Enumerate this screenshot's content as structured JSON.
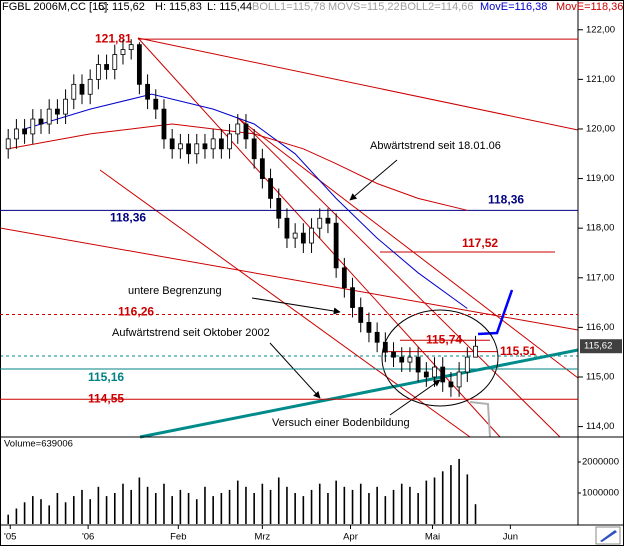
{
  "header": [
    {
      "text": "FGBL 2006M,CC [15]",
      "color": "#000000"
    },
    {
      "text": "C: 115,62",
      "color": "#000000"
    },
    {
      "text": "H: 115,83",
      "color": "#000000"
    },
    {
      "text": "L: 115,44",
      "color": "#000000"
    },
    {
      "text": "BOLL1=115,78",
      "color": "#a0a0a0"
    },
    {
      "text": "MOVS=115,22",
      "color": "#a0a0a0"
    },
    {
      "text": "BOLL2=114,66",
      "color": "#a0a0a0"
    },
    {
      "text": "MovE=116,38",
      "color": "#0000cc"
    },
    {
      "text": "MovE=118,36",
      "color": "#cc0000"
    }
  ],
  "chart_data": [
    {
      "type": "candlestick",
      "x": [
        0,
        2,
        4,
        6,
        8,
        10,
        12,
        14,
        16,
        18,
        20,
        22,
        24,
        26,
        28,
        30,
        32,
        34,
        36,
        38,
        40,
        42,
        44,
        46,
        48,
        50,
        52,
        54,
        56,
        58,
        60,
        62,
        64,
        66,
        68,
        70,
        72,
        74,
        76,
        78,
        80,
        82,
        84,
        86,
        88,
        90,
        92,
        94,
        96,
        98,
        100,
        102,
        104,
        106,
        108,
        110,
        112,
        114
      ],
      "open": [
        119.6,
        119.8,
        120.0,
        119.9,
        120.2,
        120.1,
        120.4,
        120.3,
        120.6,
        120.9,
        120.7,
        121.0,
        121.3,
        121.2,
        121.5,
        121.6,
        121.7,
        120.9,
        120.6,
        120.4,
        119.8,
        119.6,
        119.7,
        119.5,
        119.7,
        119.6,
        119.8,
        119.6,
        119.9,
        120.1,
        119.8,
        119.4,
        119.0,
        118.6,
        118.2,
        117.8,
        117.9,
        117.7,
        118.0,
        118.2,
        118.1,
        117.2,
        116.8,
        116.4,
        116.1,
        115.9,
        115.7,
        115.5,
        115.4,
        115.3,
        115.4,
        115.1,
        115.0,
        115.2,
        114.9,
        114.8,
        115.1,
        115.4
      ],
      "high": [
        120.0,
        120.2,
        120.2,
        120.4,
        120.4,
        120.6,
        120.6,
        120.8,
        121.1,
        121.1,
        121.2,
        121.5,
        121.5,
        121.7,
        121.8,
        121.81,
        121.75,
        121.1,
        120.8,
        120.6,
        120.0,
        119.9,
        119.9,
        119.9,
        119.9,
        120.0,
        120.0,
        120.1,
        120.3,
        120.3,
        120.0,
        119.6,
        119.2,
        118.8,
        118.4,
        118.1,
        118.1,
        118.2,
        118.4,
        118.4,
        118.3,
        117.4,
        117.0,
        116.6,
        116.3,
        116.1,
        115.9,
        115.7,
        115.6,
        115.6,
        115.6,
        115.3,
        115.4,
        115.4,
        115.1,
        115.3,
        115.6,
        115.83
      ],
      "low": [
        119.4,
        119.6,
        119.7,
        119.7,
        119.9,
        119.9,
        120.1,
        120.1,
        120.4,
        120.5,
        120.5,
        120.8,
        121.0,
        121.0,
        121.3,
        121.4,
        120.7,
        120.4,
        120.2,
        119.6,
        119.4,
        119.4,
        119.3,
        119.3,
        119.4,
        119.4,
        119.4,
        119.4,
        119.7,
        119.6,
        119.2,
        118.8,
        118.4,
        118.0,
        117.6,
        117.6,
        117.5,
        117.5,
        117.8,
        117.9,
        117.0,
        116.6,
        116.2,
        115.9,
        115.7,
        115.5,
        115.3,
        115.2,
        115.1,
        115.1,
        114.9,
        114.8,
        114.8,
        114.7,
        114.6,
        114.6,
        114.9,
        115.44
      ],
      "close": [
        119.8,
        120.0,
        119.9,
        120.2,
        120.1,
        120.4,
        120.3,
        120.6,
        120.9,
        120.7,
        121.0,
        121.3,
        121.2,
        121.5,
        121.6,
        121.7,
        120.9,
        120.6,
        120.4,
        119.8,
        119.6,
        119.7,
        119.5,
        119.7,
        119.6,
        119.8,
        119.6,
        119.9,
        120.1,
        119.8,
        119.4,
        119.0,
        118.6,
        118.2,
        117.8,
        117.9,
        117.7,
        118.0,
        118.2,
        118.1,
        117.2,
        116.8,
        116.4,
        116.1,
        115.9,
        115.7,
        115.5,
        115.4,
        115.3,
        115.4,
        115.1,
        115.0,
        115.2,
        114.9,
        114.8,
        115.1,
        115.4,
        115.62
      ],
      "color_up": "#ffffff",
      "color_down": "#000000",
      "xlim": [
        -2,
        139
      ],
      "xticks": [
        {
          "value": 0.5,
          "label": "'05"
        },
        {
          "value": 19.5,
          "label": "'06"
        },
        {
          "value": 41.5,
          "label": "Feb"
        },
        {
          "value": 62,
          "label": "Mrz"
        },
        {
          "value": 83.5,
          "label": "Apr"
        },
        {
          "value": 103.5,
          "label": "Mai"
        },
        {
          "value": 122.5,
          "label": "Jun"
        }
      ],
      "ylim": [
        113.79,
        122.6
      ],
      "yticks": [
        {
          "value": 114,
          "label": "114,00"
        },
        {
          "value": 115,
          "label": "115,00"
        },
        {
          "value": 116,
          "label": "116,00"
        },
        {
          "value": 117,
          "label": "117,00"
        },
        {
          "value": 118,
          "label": "118,00"
        },
        {
          "value": 119,
          "label": "119,00"
        },
        {
          "value": 120,
          "label": "120,00"
        },
        {
          "value": 121,
          "label": "121,00"
        },
        {
          "value": 122,
          "label": "122,00"
        }
      ],
      "last": {
        "value": 115.62,
        "label": "115,62"
      },
      "overlays": [
        {
          "color": "#0000cc",
          "x": [
            4,
            20,
            35,
            50,
            60,
            70,
            80,
            90,
            100,
            112
          ],
          "values": [
            120.0,
            120.4,
            120.7,
            120.4,
            120.1,
            119.5,
            118.6,
            117.8,
            117.1,
            116.38
          ]
        },
        {
          "color": "#cc0000",
          "x": [
            0,
            20,
            40,
            60,
            72,
            80,
            90,
            100,
            112
          ],
          "values": [
            119.6,
            119.9,
            120.1,
            119.9,
            119.6,
            119.3,
            118.9,
            118.6,
            118.36
          ]
        }
      ],
      "levels": [
        {
          "value": 121.81,
          "label": "121,81",
          "color": "#cc0000"
        },
        {
          "value": 118.36,
          "label": "118,36",
          "color": "#000080"
        },
        {
          "value": 117.52,
          "label": "117,52",
          "color": "#cc0000"
        },
        {
          "value": 116.26,
          "label": "116,26",
          "color": "#cc0000"
        },
        {
          "value": 115.16,
          "label": "115,16",
          "color": "#008080"
        },
        {
          "value": 114.55,
          "label": "114,55",
          "color": "#cc0000"
        },
        {
          "value": 115.74,
          "label": "115,74",
          "color": "#cc0000"
        },
        {
          "value": 115.51,
          "label": "115,51",
          "color": "#cc0000"
        }
      ],
      "annotations": [
        "Abwärtstrend seit 18.01.06",
        "untere Begrenzung",
        "Aufwärtstrend seit Oktober 2002",
        "Versuch einer Bodenbildung"
      ]
    },
    {
      "type": "bar",
      "label": "Volume=639006",
      "x": [
        0,
        2,
        4,
        6,
        8,
        10,
        12,
        14,
        16,
        18,
        20,
        22,
        24,
        26,
        28,
        30,
        32,
        34,
        36,
        38,
        40,
        42,
        44,
        46,
        48,
        50,
        52,
        54,
        56,
        58,
        60,
        62,
        64,
        66,
        68,
        70,
        72,
        74,
        76,
        78,
        80,
        82,
        84,
        86,
        88,
        90,
        92,
        94,
        96,
        98,
        100,
        102,
        104,
        106,
        108,
        110,
        112,
        114
      ],
      "values": [
        300000,
        500000,
        700000,
        900000,
        800000,
        600000,
        1000000,
        700000,
        900000,
        1100000,
        800000,
        1200000,
        900000,
        1000000,
        1300000,
        1100000,
        1500000,
        1200000,
        1000000,
        1300000,
        900000,
        1100000,
        1000000,
        800000,
        1200000,
        900000,
        1000000,
        1100000,
        1400000,
        1200000,
        1000000,
        1300000,
        1100000,
        1500000,
        1200000,
        1000000,
        900000,
        1100000,
        1300000,
        1000000,
        1400000,
        1200000,
        1100000,
        1300000,
        1000000,
        1200000,
        900000,
        1100000,
        1300000,
        1200000,
        1000000,
        1400000,
        1500000,
        1700000,
        1900000,
        2100000,
        1600000,
        639006
      ],
      "color": "#000000",
      "xlim": [
        -2,
        139
      ],
      "ylim": [
        0,
        2710000
      ],
      "yticks": [
        1000000,
        2000000
      ]
    }
  ]
}
